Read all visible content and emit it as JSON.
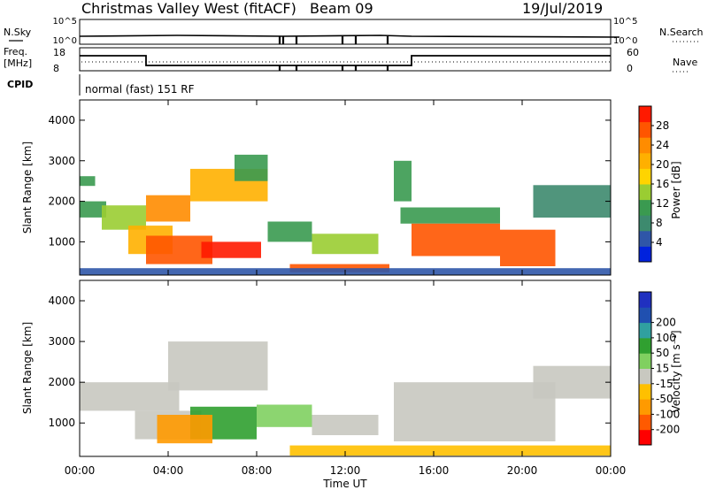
{
  "header": {
    "station": "Christmas Valley West (fitACF)",
    "beam": "Beam 09",
    "date": "19/Jul/2019"
  },
  "top_panels": {
    "nsky_label": "N.Sky",
    "nsearch_label": "N.Search",
    "nsky_ticks": [
      "10^5",
      "10^0"
    ],
    "freq_label_1": "Freq.",
    "freq_label_2": "[MHz]",
    "freq_ticks": [
      "18",
      "8"
    ],
    "nave_label": "Nave",
    "nave_ticks": [
      "60",
      "0"
    ],
    "cpid_label": "CPID",
    "cpid_text": "normal (fast) 151 RF"
  },
  "colors": {
    "power": [
      "#0022dd",
      "#2f56a8",
      "#3d8a6e",
      "#3a9a50",
      "#9acd32",
      "#ffd400",
      "#ffb000",
      "#ff8c00",
      "#ff5500",
      "#ff1a00"
    ],
    "velocity": [
      "#ff0000",
      "#ff5a00",
      "#ff9a00",
      "#ffc000",
      "#c8c8c0",
      "#80d060",
      "#30a030",
      "#30a0a0",
      "#2050b0",
      "#2030c0"
    ],
    "ground_scatter": "#c8c8c0"
  },
  "chart_data": [
    {
      "type": "heatmap",
      "ylabel": "Slant Range [km]",
      "xlabel": "Time UT",
      "x_ticks": [
        "00:00",
        "04:00",
        "08:00",
        "12:00",
        "16:00",
        "20:00",
        "00:00"
      ],
      "y_ticks": [
        "1000",
        "2000",
        "3000",
        "4000"
      ],
      "ylim": [
        180,
        4500
      ],
      "xlim_hours": [
        0,
        24
      ],
      "colorbar": {
        "label": "Power [dB]",
        "ticks": [
          "4",
          "8",
          "12",
          "16",
          "20",
          "24",
          "28"
        ]
      },
      "series": [
        {
          "t0": 0.0,
          "t1": 0.7,
          "r0": 2380,
          "r1": 2620,
          "value": 12
        },
        {
          "t0": 0.0,
          "t1": 1.2,
          "r0": 1600,
          "r1": 2000,
          "value": 10
        },
        {
          "t0": 1.0,
          "t1": 3.0,
          "r0": 1300,
          "r1": 1900,
          "value": 14
        },
        {
          "t0": 2.2,
          "t1": 4.2,
          "r0": 700,
          "r1": 1400,
          "value": 20
        },
        {
          "t0": 3.0,
          "t1": 6.0,
          "r0": 450,
          "r1": 1150,
          "value": 28
        },
        {
          "t0": 5.5,
          "t1": 8.2,
          "r0": 600,
          "r1": 1000,
          "value": 29
        },
        {
          "t0": 3.0,
          "t1": 5.0,
          "r0": 1500,
          "r1": 2150,
          "value": 25
        },
        {
          "t0": 5.0,
          "t1": 8.5,
          "r0": 2000,
          "r1": 2800,
          "value": 22
        },
        {
          "t0": 7.0,
          "t1": 8.5,
          "r0": 2500,
          "r1": 3150,
          "value": 12
        },
        {
          "t0": 8.5,
          "t1": 10.5,
          "r0": 1000,
          "r1": 1500,
          "value": 12
        },
        {
          "t0": 10.5,
          "t1": 13.5,
          "r0": 700,
          "r1": 1200,
          "value": 14
        },
        {
          "t0": 9.5,
          "t1": 14.0,
          "r0": 250,
          "r1": 450,
          "value": 26
        },
        {
          "t0": 14.2,
          "t1": 15.0,
          "r0": 2000,
          "r1": 3000,
          "value": 10
        },
        {
          "t0": 14.5,
          "t1": 19.0,
          "r0": 1450,
          "r1": 1850,
          "value": 12
        },
        {
          "t0": 15.0,
          "t1": 19.0,
          "r0": 650,
          "r1": 1450,
          "value": 28
        },
        {
          "t0": 19.0,
          "t1": 21.5,
          "r0": 400,
          "r1": 1300,
          "value": 27
        },
        {
          "t0": 20.5,
          "t1": 24.0,
          "r0": 1600,
          "r1": 2400,
          "value": 8
        },
        {
          "t0": 0.0,
          "t1": 24.0,
          "r0": 180,
          "r1": 350,
          "value": 6
        }
      ]
    },
    {
      "type": "heatmap",
      "ylabel": "Slant Range [km]",
      "xlabel": "Time UT",
      "x_ticks": [
        "00:00",
        "04:00",
        "08:00",
        "12:00",
        "16:00",
        "20:00",
        "00:00"
      ],
      "y_ticks": [
        "1000",
        "2000",
        "3000",
        "4000"
      ],
      "ylim": [
        180,
        4500
      ],
      "xlim_hours": [
        0,
        24
      ],
      "colorbar": {
        "label": "Velocity [m s⁻¹]",
        "ticks": [
          "-200",
          "-100",
          "-50",
          "-15",
          "15",
          "50",
          "100",
          "200"
        ]
      },
      "series": [
        {
          "t0": 0.0,
          "t1": 4.5,
          "r0": 1300,
          "r1": 2000,
          "value": 0
        },
        {
          "t0": 4.0,
          "t1": 8.5,
          "r0": 1800,
          "r1": 3000,
          "value": 0
        },
        {
          "t0": 2.5,
          "t1": 5.5,
          "r0": 600,
          "r1": 1300,
          "value": 0
        },
        {
          "t0": 5.0,
          "t1": 8.0,
          "r0": 600,
          "r1": 1400,
          "value": 80
        },
        {
          "t0": 3.5,
          "t1": 6.0,
          "r0": 500,
          "r1": 1200,
          "value": -60
        },
        {
          "t0": 8.0,
          "t1": 10.5,
          "r0": 900,
          "r1": 1450,
          "value": 40
        },
        {
          "t0": 10.5,
          "t1": 13.5,
          "r0": 700,
          "r1": 1200,
          "value": 0
        },
        {
          "t0": 9.5,
          "t1": 24.0,
          "r0": 200,
          "r1": 450,
          "value": -40
        },
        {
          "t0": 14.2,
          "t1": 21.5,
          "r0": 550,
          "r1": 2000,
          "value": 0
        },
        {
          "t0": 20.5,
          "t1": 24.0,
          "r0": 1600,
          "r1": 2400,
          "value": 0
        }
      ]
    }
  ],
  "x_axis_label": "Time UT"
}
